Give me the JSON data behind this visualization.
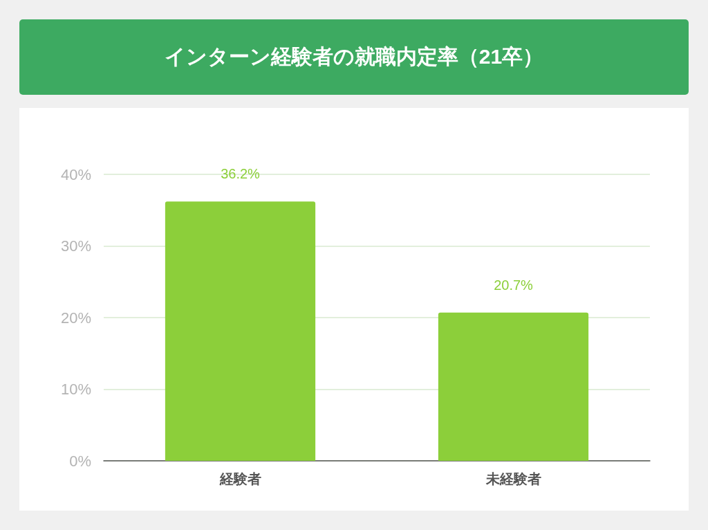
{
  "chart_data": {
    "type": "bar",
    "title": "インターン経験者の就職内定率（21卒）",
    "categories": [
      "経験者",
      "未経験者"
    ],
    "values": [
      36.2,
      20.7
    ],
    "color": "#8ccf3a",
    "value_labels": [
      "36.2%",
      "20.7%"
    ],
    "ylim": [
      0,
      40
    ],
    "yticks": [
      {
        "value": 0,
        "label": "0%"
      },
      {
        "value": 10,
        "label": "10%"
      },
      {
        "value": 20,
        "label": "20%"
      },
      {
        "value": 30,
        "label": "30%"
      },
      {
        "value": 40,
        "label": "40%"
      }
    ],
    "grid": "y"
  }
}
